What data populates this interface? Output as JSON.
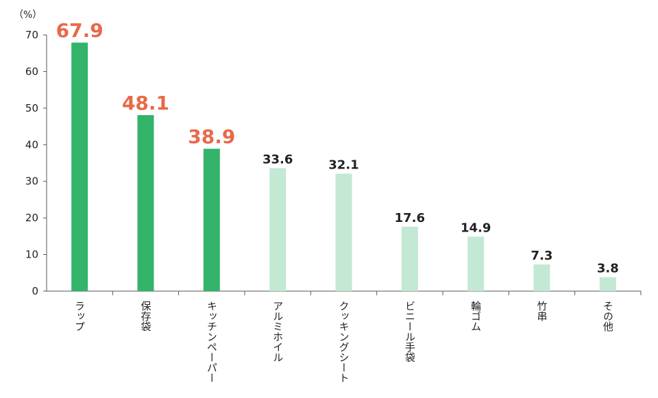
{
  "chart_data": {
    "type": "bar",
    "unit_label": "（%）",
    "ylim": [
      0,
      70
    ],
    "yticks": [
      0,
      10,
      20,
      30,
      40,
      50,
      60,
      70
    ],
    "grid": false,
    "categories": [
      "ラップ",
      "保存袋",
      "キッチンペーパー",
      "アルミホイル",
      "クッキングシート",
      "ビニール手袋",
      "輪ゴム",
      "竹串",
      "その他"
    ],
    "values": [
      67.9,
      48.1,
      38.9,
      33.6,
      32.1,
      17.6,
      14.9,
      7.3,
      3.8
    ],
    "value_labels": [
      "67.9",
      "48.1",
      "38.9",
      "33.6",
      "32.1",
      "17.6",
      "14.9",
      "7.3",
      "3.8"
    ],
    "highlight": [
      true,
      true,
      true,
      false,
      false,
      false,
      false,
      false,
      false
    ],
    "colors": {
      "highlight_bar": "#34b36b",
      "normal_bar": "#c3e8d4",
      "highlight_label": "#e8694a",
      "normal_label": "#222222",
      "axis": "#555555"
    }
  }
}
